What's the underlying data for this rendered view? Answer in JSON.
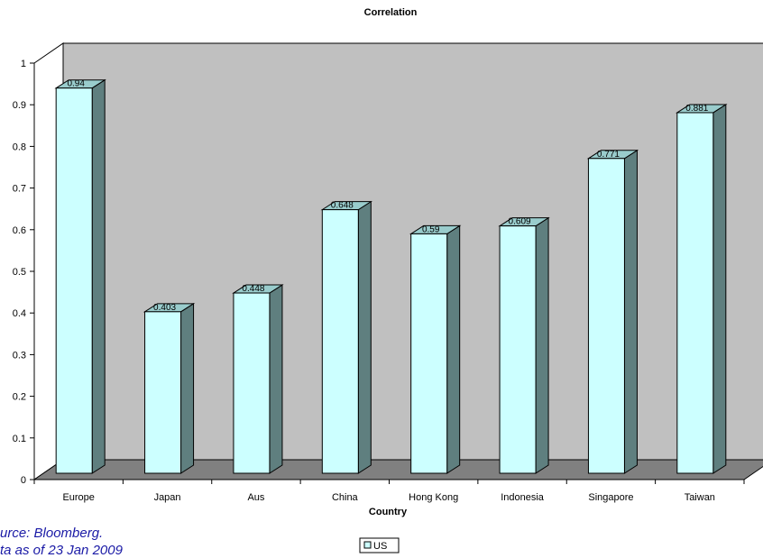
{
  "chart_data": {
    "type": "bar",
    "title": "Correlation",
    "xlabel": "Country",
    "ylabel": "",
    "categories": [
      "Europe",
      "Japan",
      "Aus",
      "China",
      "Hong Kong",
      "Indonesia",
      "Singapore",
      "Taiwan"
    ],
    "series": [
      {
        "name": "US",
        "values": [
          0.94,
          0.403,
          0.448,
          0.648,
          0.59,
          0.609,
          0.771,
          0.881
        ]
      }
    ],
    "data_labels": [
      "0.94",
      "0.403",
      "0.448",
      "0.648",
      "0.59",
      "0.609",
      "0.771",
      "0.881"
    ],
    "ylim": [
      0,
      1
    ],
    "yticks": [
      "0",
      "0.1",
      "0.2",
      "0.3",
      "0.4",
      "0.5",
      "0.6",
      "0.7",
      "0.8",
      "0.9",
      "1"
    ],
    "grid": false,
    "legend": "bottom-center",
    "style": "3d-column",
    "colors": {
      "bar_front": "#ccffff",
      "bar_side": "#5f7f7f",
      "bar_top": "#99cccc",
      "back_wall": "#c0c0c0",
      "floor": "#808080",
      "legend_swatch": "#ccffff"
    }
  },
  "source": {
    "line1": "urce: Bloomberg.",
    "line2": "ta as of 23 Jan 2009"
  }
}
